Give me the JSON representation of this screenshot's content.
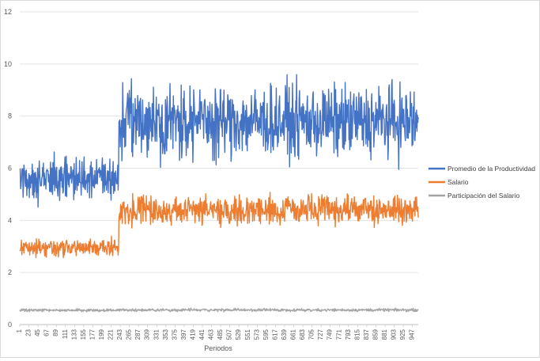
{
  "chart_data": {
    "type": "line",
    "title": "",
    "xlabel": "Periodos",
    "ylabel": "",
    "ylim": [
      0,
      12
    ],
    "yticks": [
      0,
      2,
      4,
      6,
      8,
      10,
      12
    ],
    "xlim": [
      1,
      961
    ],
    "xticks": [
      1,
      23,
      45,
      67,
      89,
      111,
      133,
      155,
      177,
      199,
      221,
      243,
      265,
      287,
      309,
      331,
      353,
      375,
      397,
      419,
      441,
      463,
      485,
      507,
      529,
      551,
      573,
      595,
      617,
      639,
      661,
      683,
      705,
      727,
      749,
      771,
      793,
      815,
      837,
      859,
      881,
      903,
      925,
      947
    ],
    "grid": true,
    "legend_position": "right",
    "regime_change_period": 240,
    "series": [
      {
        "name": "Promedio de la Productividad",
        "color": "#4472c4",
        "mean_before": 5.6,
        "mean_after": 7.8,
        "spread_before": 0.6,
        "spread_after": 1.0
      },
      {
        "name": "Salario",
        "color": "#ed7d31",
        "mean_before": 2.95,
        "mean_after": 4.4,
        "spread_before": 0.25,
        "spread_after": 0.4
      },
      {
        "name": "Participación del Salario",
        "color": "#a5a5a5",
        "mean_before": 0.55,
        "mean_after": 0.56,
        "spread_before": 0.04,
        "spread_after": 0.04
      }
    ]
  }
}
